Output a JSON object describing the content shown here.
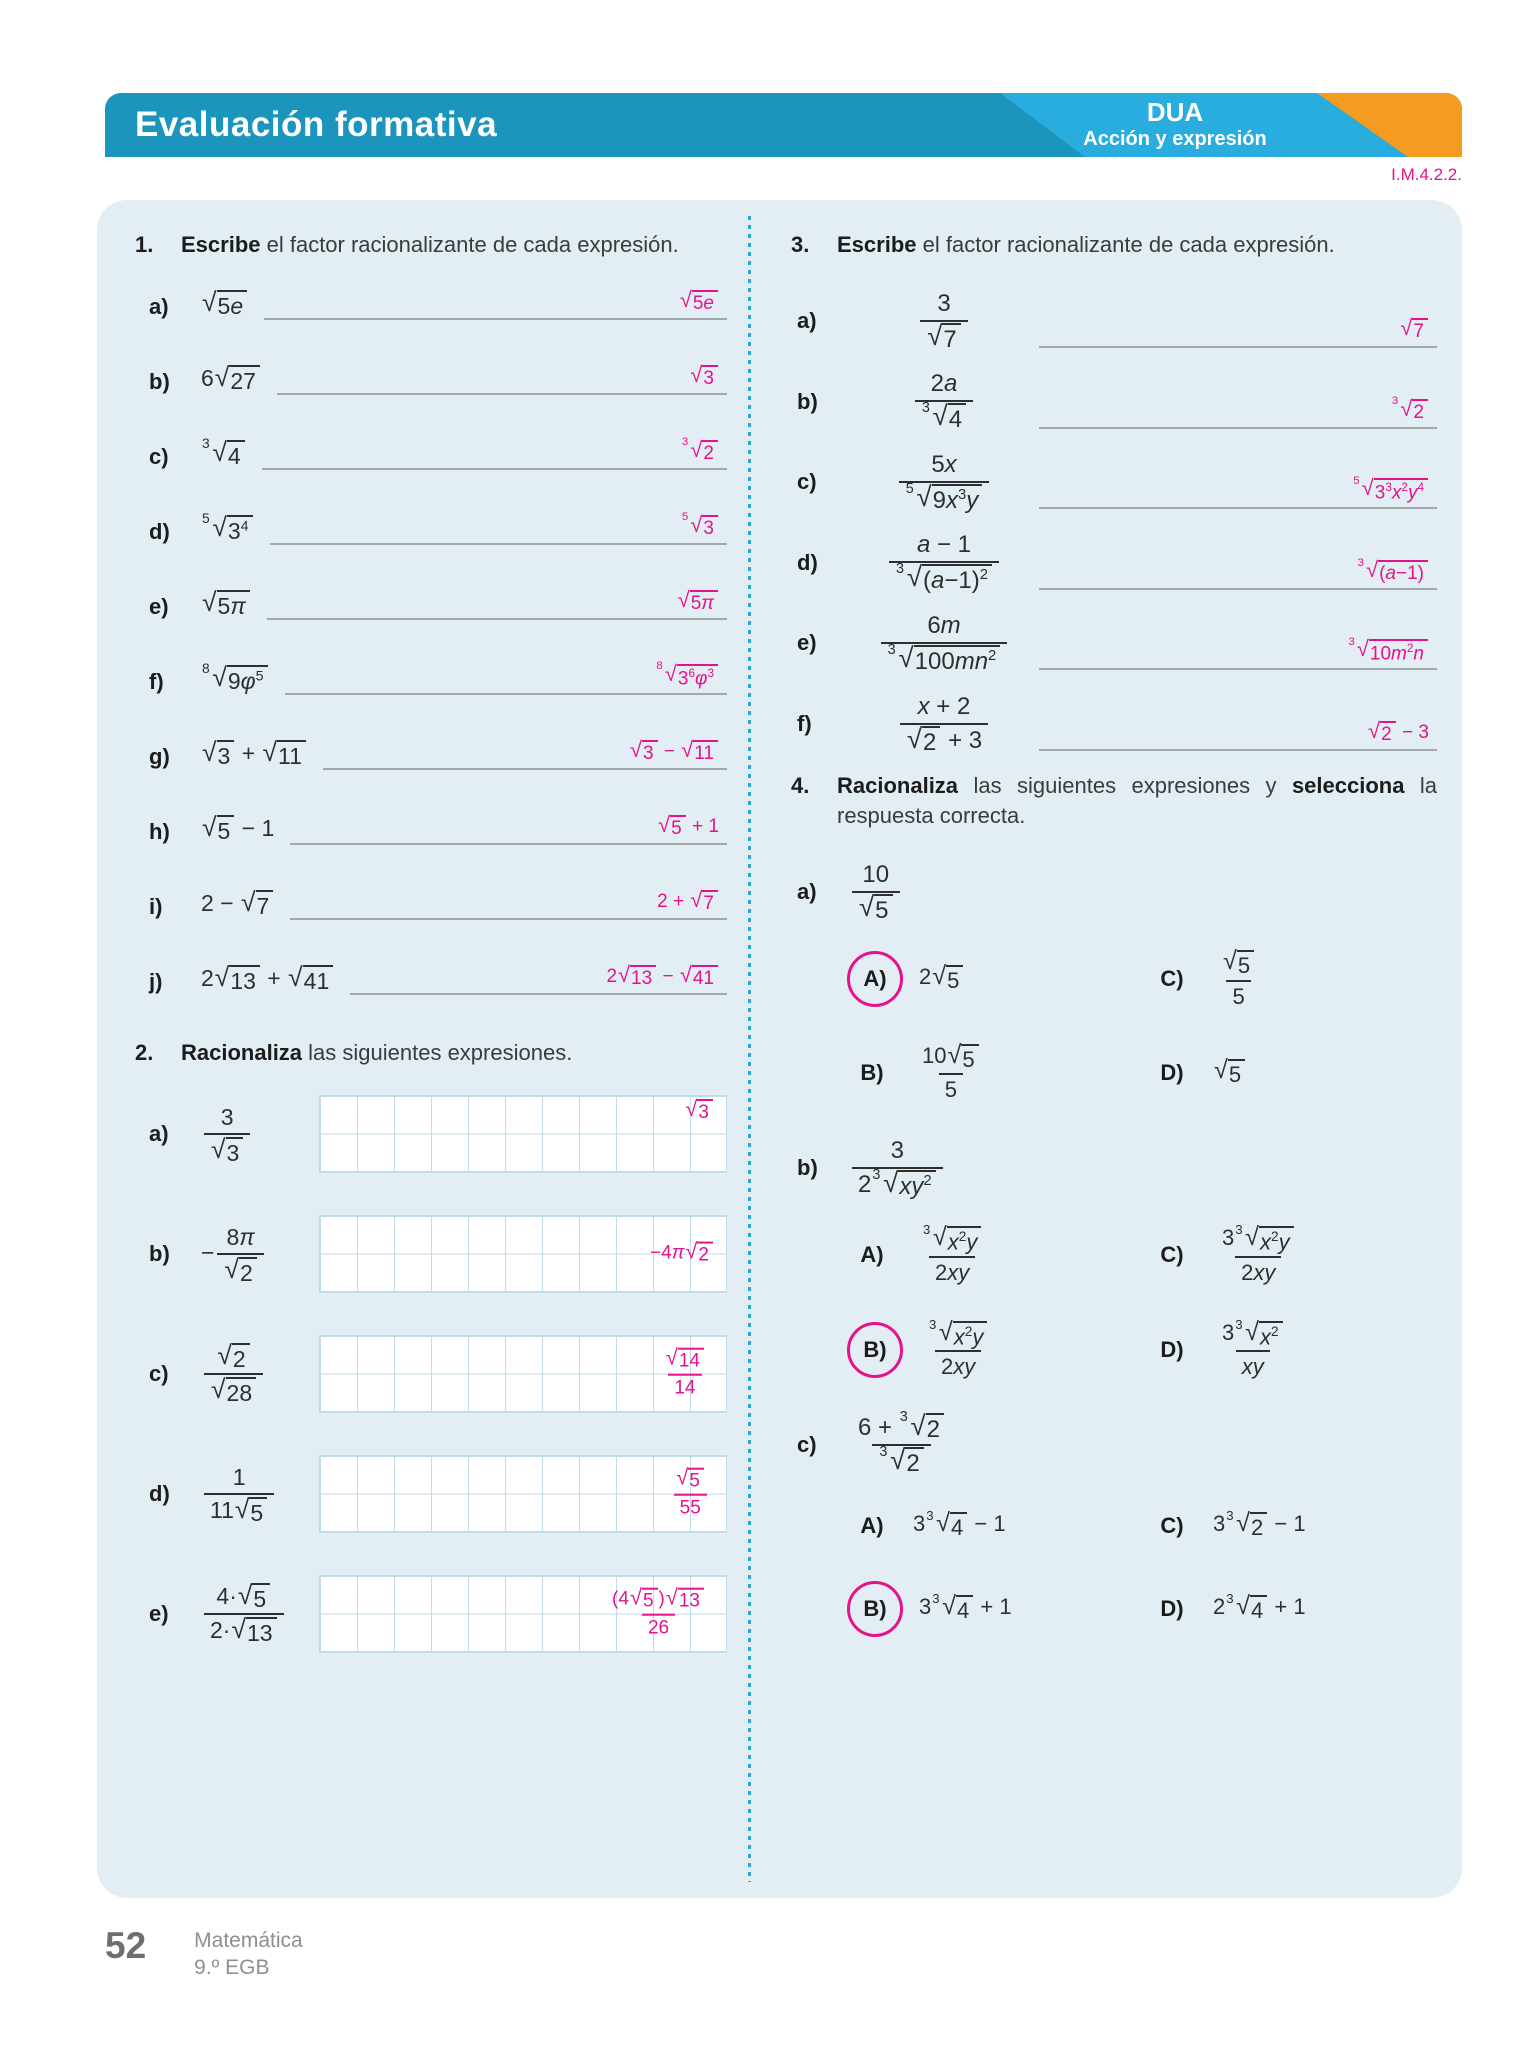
{
  "header": {
    "title": "Evaluación formativa",
    "dua_title": "DUA",
    "dua_subtitle": "Acción y expresión",
    "code": "I.M.4.2.2."
  },
  "colors": {
    "banner_teal": "#1B95BB",
    "banner_cyan": "#29ACDE",
    "banner_orange": "#F59C20",
    "panel_background": "#E2EEF3",
    "answer_magenta": "#E6118C",
    "divider_blue": "#2FA7D4",
    "line_gray": "#9FA8AC",
    "grid_line": "#BFDCE8"
  },
  "exercises": {
    "ex1": {
      "num": "1.",
      "head": [
        {
          "b": "Escribe"
        },
        {
          "t": " el factor racionalizante de cada expresión."
        }
      ],
      "items": [
        {
          "label": "a)",
          "expr": "@r{5e}",
          "answer": "@r{5e}"
        },
        {
          "label": "b)",
          "expr": "6@r{27}",
          "answer": "@r{3}"
        },
        {
          "label": "c)",
          "expr": "@r[3]{4}",
          "answer": "@r[3]{2}"
        },
        {
          "label": "d)",
          "expr": "@r[5]{3^4}",
          "answer": "@r[5]{3}"
        },
        {
          "label": "e)",
          "expr": "@r{5π}",
          "answer": "@r{5π}"
        },
        {
          "label": "f)",
          "expr": "@r[8]{9φ^5}",
          "answer": "@r[8]{3^6φ^3}"
        },
        {
          "label": "g)",
          "expr": "@r{3} + @r{11}",
          "answer": "@r{3} − @r{11}"
        },
        {
          "label": "h)",
          "expr": "@r{5} − 1",
          "answer": "@r{5} + 1"
        },
        {
          "label": "i)",
          "expr": "2 − @r{7}",
          "answer": "2 + @r{7}"
        },
        {
          "label": "j)",
          "expr": "2@r{13} + @r{41}",
          "answer": "2@r{13} − @r{41}"
        }
      ]
    },
    "ex2": {
      "num": "2.",
      "head": [
        {
          "b": "Racionaliza"
        },
        {
          "t": " las siguientes expresiones."
        }
      ],
      "items": [
        {
          "label": "a)",
          "expr": "@f{3}{@r{3}}",
          "answer": "@r{3}",
          "ans_pos": "top"
        },
        {
          "label": "b)",
          "expr": "−@f{8π}{@r{2}}",
          "answer": "−4π@r{2}",
          "ans_pos": "center"
        },
        {
          "label": "c)",
          "expr": "@f{@r{2}}{@r{28}}",
          "answer": "@f{@r{14}}{14}",
          "ans_pos": "center"
        },
        {
          "label": "d)",
          "expr": "@f{1}{11@r{5}}",
          "answer": "@f{@r{5}}{55}",
          "ans_pos": "center"
        },
        {
          "label": "e)",
          "expr": "@f{4·@r{5}}{2·@r{13}}",
          "answer": "@f{(4@r{5})@r{13}}{26}",
          "ans_pos": "center"
        }
      ]
    },
    "ex3": {
      "num": "3.",
      "head": [
        {
          "b": "Escribe"
        },
        {
          "t": " el factor racionalizante de cada expresión."
        }
      ],
      "items": [
        {
          "label": "a)",
          "expr": "@f{3}{@r{7}}",
          "answer": "@r{7}"
        },
        {
          "label": "b)",
          "expr": "@f{2a}{@r[3]{4}}",
          "answer": "@r[3]{2}"
        },
        {
          "label": "c)",
          "expr": "@f{5x}{@r[5]{9x^3y}}",
          "answer": "@r[5]{3^3x^2y^4}"
        },
        {
          "label": "d)",
          "expr": "@f{a − 1}{@r[3]{(a−1)^2}}",
          "answer": "@r[3]{(a−1)}"
        },
        {
          "label": "e)",
          "expr": "@f{6m}{@r[3]{100mn^2}}",
          "answer": "@r[3]{10m^2n}"
        },
        {
          "label": "f)",
          "expr": "@f{x + 2}{@r{2} + 3}",
          "answer": "@r{2} − 3"
        }
      ]
    },
    "ex4": {
      "num": "4.",
      "head": [
        {
          "b": "Racionaliza"
        },
        {
          "t": " las siguientes expresiones y "
        },
        {
          "b": "selecciona"
        },
        {
          "t": " la respuesta correcta."
        }
      ],
      "items": [
        {
          "label": "a)",
          "expr": "@f{10}{@r{5}}",
          "options": [
            {
              "key": "A)",
              "expr": "2@r{5}",
              "circled": true
            },
            {
              "key": "C)",
              "expr": "@f{@r{5}}{5}",
              "circled": false
            },
            {
              "key": "B)",
              "expr": "@f{10@r{5}}{5}",
              "circled": false
            },
            {
              "key": "D)",
              "expr": "@r{5}",
              "circled": false
            }
          ]
        },
        {
          "label": "b)",
          "expr": "@f{3}{2@r[3]{xy^2}}",
          "options": [
            {
              "key": "A)",
              "expr": "@f{@r[3]{x^2y}}{2xy}",
              "circled": false
            },
            {
              "key": "C)",
              "expr": "@f{3@r[3]{x^2y}}{2xy}",
              "circled": false
            },
            {
              "key": "B)",
              "expr": "@f{@r[3]{x^2y}}{2xy}",
              "circled": true
            },
            {
              "key": "D)",
              "expr": "@f{3@r[3]{x^2}}{xy}",
              "circled": false
            }
          ]
        },
        {
          "label": "c)",
          "expr": "@f{6 + @r[3]{2}}{@r[3]{2}}",
          "options": [
            {
              "key": "A)",
              "expr": "3@r[3]{4} − 1",
              "circled": false
            },
            {
              "key": "C)",
              "expr": "3@r[3]{2} − 1",
              "circled": false
            },
            {
              "key": "B)",
              "expr": "3@r[3]{4} + 1",
              "circled": true
            },
            {
              "key": "D)",
              "expr": "2@r[3]{4} + 1",
              "circled": false
            }
          ]
        }
      ]
    }
  },
  "footer": {
    "page_number": "52",
    "book": "Matemática",
    "grade": "9.º EGB"
  }
}
